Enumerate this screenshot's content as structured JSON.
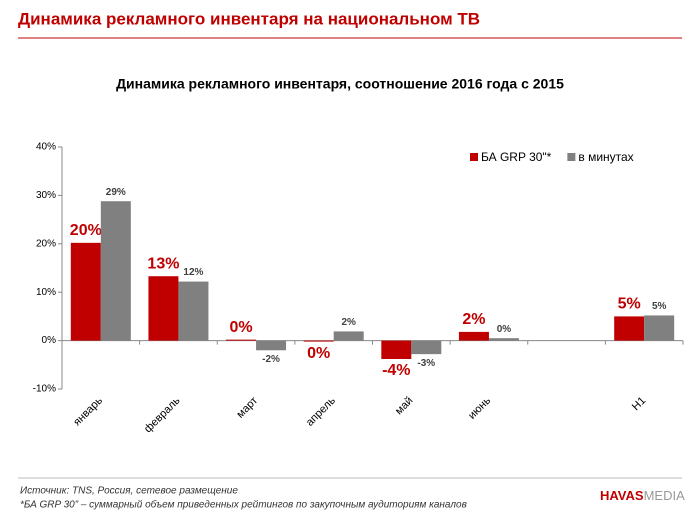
{
  "header": {
    "title": "Динамика рекламного инвентаря на национальном ТВ"
  },
  "chart_data": {
    "type": "bar",
    "title": "Динамика рекламного инвентаря, соотношение 2016 года с 2015",
    "categories": [
      "январь",
      "февраль",
      "март",
      "апрель",
      "май",
      "июнь",
      null,
      "H1"
    ],
    "series": [
      {
        "name": "БА GRP 30\"*",
        "color": "#c00000",
        "values": [
          20.2,
          13.3,
          0.2,
          -0.2,
          -3.8,
          1.8,
          null,
          5.0
        ],
        "value_labels": [
          "20%",
          "13%",
          "0%",
          "0%",
          "-4%",
          "2%",
          null,
          "5%"
        ]
      },
      {
        "name": "в минутах",
        "color": "#808080",
        "values": [
          28.8,
          12.2,
          -2.0,
          1.9,
          -2.8,
          0.5,
          null,
          5.2
        ],
        "value_labels": [
          "29%",
          "12%",
          "-2%",
          "2%",
          "-3%",
          "0%",
          null,
          "5%"
        ]
      }
    ],
    "ylim": [
      -10,
      40
    ],
    "yticks": [
      {
        "value": -10,
        "label": "-10%"
      },
      {
        "value": 0,
        "label": "0%"
      },
      {
        "value": 10,
        "label": "10%"
      },
      {
        "value": 20,
        "label": "20%"
      },
      {
        "value": 30,
        "label": "30%"
      },
      {
        "value": 40,
        "label": "40%"
      }
    ],
    "legend": "upper right"
  },
  "footer": {
    "source": "Источник: TNS, Россия, сетевое размещение",
    "note": "*БА GRP 30” – суммарный объем приведенных рейтингов по закупочным аудиториям каналов",
    "logo_left": "HAVAS",
    "logo_right": "MEDIA"
  }
}
